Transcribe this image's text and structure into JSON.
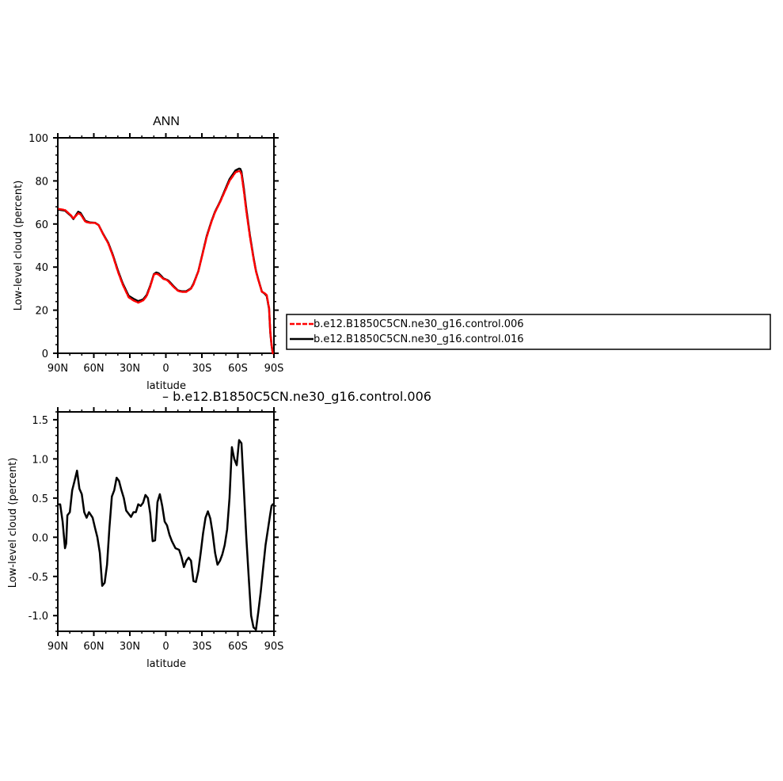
{
  "chart_data": [
    {
      "type": "line",
      "title": "ANN",
      "xlabel": "latitude",
      "ylabel": "Low-level cloud (percent)",
      "xlim": [
        -90,
        90
      ],
      "ylim": [
        0,
        100
      ],
      "xticks": [
        -90,
        -60,
        -30,
        0,
        30,
        60,
        90
      ],
      "xtick_labels": [
        "90N",
        "60N",
        "30N",
        "0",
        "30S",
        "60S",
        "90S"
      ],
      "yticks": [
        0,
        20,
        40,
        60,
        80,
        100
      ],
      "ytick_labels": [
        "0",
        "20",
        "40",
        "60",
        "80",
        "100"
      ],
      "legend_position": "right",
      "series": [
        {
          "name": "b.e12.B1850C5CN.ne30_g16.control.006",
          "color": "#ff0000",
          "style": "dashed",
          "x": [
            -89,
            -84,
            -79,
            -77,
            -73,
            -71,
            -67,
            -63,
            -59,
            -56,
            -52,
            -48,
            -44,
            -40,
            -36,
            -31,
            -27,
            -23,
            -19,
            -16,
            -13,
            -10,
            -8,
            -6,
            -4,
            -2,
            0,
            2,
            4,
            7,
            10,
            13,
            17,
            21,
            23,
            27,
            31,
            34,
            38,
            41,
            45,
            49,
            53,
            58,
            61,
            62,
            63,
            64,
            65,
            67,
            70,
            73,
            75,
            77,
            80,
            82,
            84,
            86,
            87,
            88,
            89
          ],
          "y": [
            67,
            66.5,
            64,
            62.5,
            65,
            64.5,
            61,
            60.5,
            60.5,
            59.5,
            55,
            51,
            45,
            38,
            32,
            26,
            24.5,
            23.5,
            24.5,
            26.5,
            31,
            36.5,
            37,
            36.5,
            35.5,
            34.5,
            34.2,
            33.5,
            32.2,
            30.5,
            29,
            28.5,
            28.5,
            30,
            32,
            38,
            47,
            54,
            61,
            65.5,
            70,
            75,
            80,
            84,
            84.6,
            84.4,
            83,
            79,
            75,
            66,
            54,
            44,
            38,
            34,
            28.5,
            28,
            27,
            21,
            10,
            4,
            0
          ]
        },
        {
          "name": "b.e12.B1850C5CN.ne30_g16.control.016",
          "color": "#000000",
          "style": "solid",
          "x": [
            -89,
            -84,
            -79,
            -77,
            -73,
            -71,
            -67,
            -63,
            -59,
            -56,
            -52,
            -48,
            -44,
            -40,
            -36,
            -31,
            -27,
            -23,
            -19,
            -16,
            -13,
            -10,
            -8,
            -6,
            -4,
            -2,
            0,
            2,
            4,
            7,
            10,
            13,
            17,
            21,
            23,
            27,
            31,
            34,
            38,
            41,
            45,
            49,
            53,
            58,
            61,
            62,
            63,
            64,
            65,
            67,
            70,
            73,
            75,
            77,
            80,
            82,
            84,
            86,
            87,
            88,
            89
          ],
          "y": [
            66.6,
            66.2,
            63.8,
            62.3,
            65.7,
            65.1,
            61.4,
            60.7,
            60.6,
            59.5,
            55.2,
            51.3,
            45.4,
            38.6,
            32.5,
            26.7,
            25.3,
            24.2,
            25,
            27,
            31.4,
            36.7,
            37.5,
            37.1,
            36,
            34.7,
            34.3,
            33.8,
            32.6,
            30.8,
            29.2,
            28.8,
            28.8,
            30.2,
            32.3,
            38.1,
            47.3,
            54.4,
            61.3,
            65.8,
            70.3,
            75.5,
            80.8,
            84.9,
            85.7,
            85.6,
            84.2,
            80.2,
            76.2,
            67.1,
            54.7,
            44.5,
            38.3,
            34.2,
            28.6,
            27.8,
            26.6,
            20.5,
            9.6,
            3.7,
            0
          ]
        }
      ]
    },
    {
      "type": "line",
      "title": "",
      "series_label": "b.e12.B1850C5CN.ne30_g16.control.006",
      "xlabel": "latitude",
      "ylabel": "Low-level cloud (percent)",
      "xlim": [
        -90,
        90
      ],
      "ylim": [
        -1.2,
        1.6
      ],
      "xticks": [
        -90,
        -60,
        -30,
        0,
        30,
        60,
        90
      ],
      "xtick_labels": [
        "90N",
        "60N",
        "30N",
        "0",
        "30S",
        "60S",
        "90S"
      ],
      "yticks": [
        -1.0,
        -0.5,
        0.0,
        0.5,
        1.0,
        1.5
      ],
      "ytick_labels": [
        "-1.0",
        "-0.5",
        "0.0",
        "0.5",
        "1.0",
        "1.5"
      ],
      "series": [
        {
          "color": "#000000",
          "style": "solid",
          "x": [
            -89,
            -88,
            -86,
            -84,
            -83,
            -82,
            -80,
            -78,
            -76,
            -74,
            -72,
            -70,
            -68,
            -66,
            -64,
            -61,
            -59,
            -57,
            -55,
            -53,
            -51,
            -49,
            -47,
            -45,
            -43,
            -41,
            -39,
            -37,
            -35,
            -33,
            -31,
            -29,
            -27,
            -25,
            -23,
            -21,
            -19,
            -17,
            -15,
            -13,
            -11,
            -9,
            -7,
            -5,
            -3,
            -1,
            1,
            3,
            5,
            8,
            11,
            13,
            15,
            17,
            19,
            21,
            23,
            25,
            27,
            29,
            31,
            33,
            35,
            37,
            39,
            41,
            43,
            45,
            47,
            49,
            51,
            53,
            55,
            57,
            59,
            61,
            63,
            65,
            67,
            69,
            71,
            73,
            75,
            77,
            79,
            81,
            83,
            85,
            87,
            88,
            89
          ],
          "y": [
            0.42,
            0.42,
            0.2,
            -0.14,
            -0.08,
            0.28,
            0.32,
            0.6,
            0.72,
            0.85,
            0.62,
            0.55,
            0.32,
            0.25,
            0.32,
            0.25,
            0.12,
            0.0,
            -0.2,
            -0.62,
            -0.58,
            -0.35,
            0.12,
            0.52,
            0.6,
            0.76,
            0.72,
            0.6,
            0.5,
            0.34,
            0.3,
            0.26,
            0.32,
            0.32,
            0.42,
            0.4,
            0.44,
            0.54,
            0.5,
            0.3,
            -0.05,
            -0.04,
            0.45,
            0.55,
            0.4,
            0.2,
            0.15,
            0.03,
            -0.05,
            -0.14,
            -0.16,
            -0.25,
            -0.38,
            -0.3,
            -0.26,
            -0.3,
            -0.56,
            -0.57,
            -0.43,
            -0.2,
            0.05,
            0.25,
            0.33,
            0.24,
            0.05,
            -0.2,
            -0.35,
            -0.3,
            -0.22,
            -0.1,
            0.1,
            0.5,
            1.15,
            1.0,
            0.92,
            1.24,
            1.2,
            0.6,
            0.0,
            -0.5,
            -1.0,
            -1.15,
            -1.18,
            -0.95,
            -0.7,
            -0.4,
            -0.1,
            0.1,
            0.3,
            0.4,
            0.42
          ]
        }
      ]
    }
  ]
}
